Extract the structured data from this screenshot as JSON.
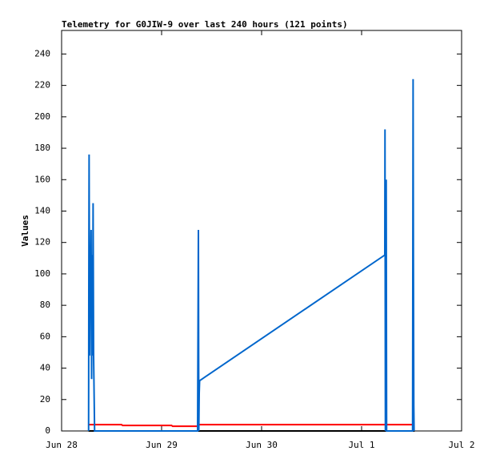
{
  "chart_data": {
    "type": "line",
    "title": "Telemetry for G0JIW-9 over last 240 hours (121 points)",
    "y_label": "Values",
    "xlim": [
      0,
      4
    ],
    "xticks": [
      {
        "value": 0,
        "label": "Jun 28"
      },
      {
        "value": 1,
        "label": "Jun 29"
      },
      {
        "value": 2,
        "label": "Jun 30"
      },
      {
        "value": 3,
        "label": "Jul 1"
      },
      {
        "value": 4,
        "label": "Jul 2"
      }
    ],
    "ylim": [
      0,
      255
    ],
    "yticks": [
      0,
      20,
      40,
      60,
      80,
      100,
      120,
      140,
      160,
      180,
      200,
      220,
      240
    ],
    "series": [
      {
        "color": "#000000",
        "x": [
          0.27,
          3.53
        ],
        "values": [
          0,
          0
        ]
      },
      {
        "color": "#ff0000",
        "x": [
          0.27,
          0.6,
          0.61,
          1.1,
          1.11,
          1.36,
          1.37,
          3.52
        ],
        "values": [
          4,
          4,
          3.5,
          3.5,
          3,
          3,
          4,
          4
        ]
      },
      {
        "color": "#0066cc",
        "x": [
          0.27,
          0.272,
          0.275,
          0.28,
          0.285,
          0.29,
          0.295,
          0.3,
          0.305,
          0.31,
          0.315,
          0.32,
          0.33,
          0.335,
          0.34,
          1.36,
          1.368,
          1.372,
          1.376,
          1.38,
          3.232,
          3.234,
          3.238,
          3.246,
          3.25,
          3.51,
          3.512,
          3.515,
          3.518,
          3.522,
          3.525
        ],
        "values": [
          0,
          88,
          176,
          48,
          113,
          96,
          128,
          33,
          112,
          48,
          145,
          48,
          0,
          0,
          0,
          0,
          128,
          0,
          24,
          32,
          112,
          192,
          0,
          160,
          0,
          0,
          96,
          224,
          112,
          16,
          0
        ]
      }
    ]
  }
}
